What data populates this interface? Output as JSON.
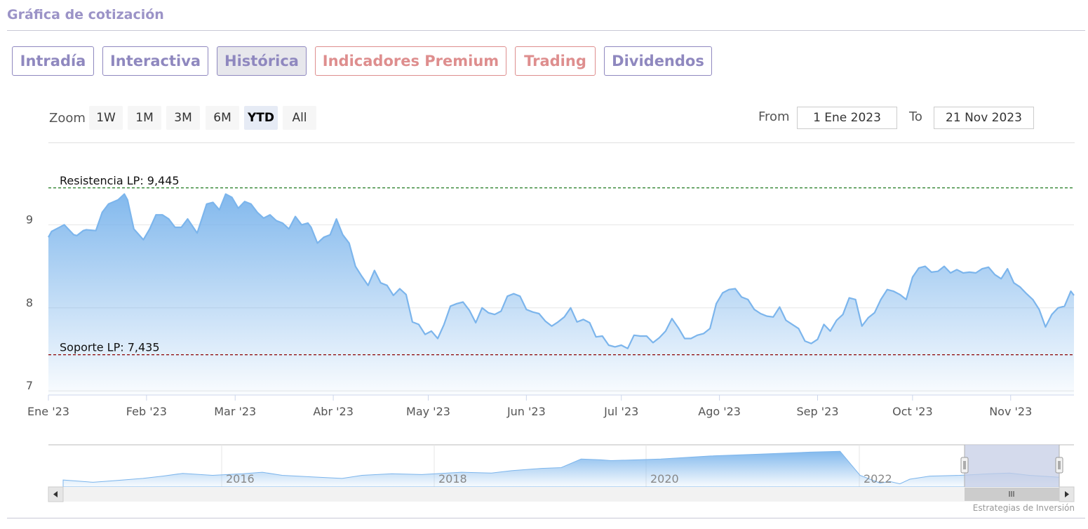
{
  "page": {
    "title": "Gráfica de cotización"
  },
  "tabs": [
    {
      "label": "Intradía",
      "active": false,
      "style": "default"
    },
    {
      "label": "Interactiva",
      "active": false,
      "style": "default"
    },
    {
      "label": "Histórica",
      "active": true,
      "style": "default"
    },
    {
      "label": "Indicadores Premium",
      "active": false,
      "style": "premium"
    },
    {
      "label": "Trading",
      "active": false,
      "style": "premium"
    },
    {
      "label": "Dividendos",
      "active": false,
      "style": "default"
    }
  ],
  "range_selector": {
    "zoom_label": "Zoom",
    "buttons": [
      {
        "label": "1W",
        "active": false
      },
      {
        "label": "1M",
        "active": false
      },
      {
        "label": "3M",
        "active": false
      },
      {
        "label": "6M",
        "active": false
      },
      {
        "label": "YTD",
        "active": true
      },
      {
        "label": "All",
        "active": false
      }
    ],
    "from_label": "From",
    "from_value": "1 Ene 2023",
    "to_label": "To",
    "to_value": "21 Nov 2023"
  },
  "credits": "Estrategias de Inversión",
  "colors": {
    "line": "#7cb5ec",
    "resistance": "#1e7a1e",
    "support": "#8b0000",
    "navigator_mask": "#c5cde6",
    "tab_default": "#8f88bf",
    "tab_premium": "#de8e8e"
  },
  "chart_data": [
    {
      "type": "area",
      "x_range": [
        "2023-01-01",
        "2023-11-21"
      ],
      "ylim": [
        6.95,
        9.95
      ],
      "y_ticks": [
        7,
        8,
        9
      ],
      "x_ticks": [
        {
          "date": "2023-01-01",
          "label": "Ene '23"
        },
        {
          "date": "2023-02-01",
          "label": "Feb '23"
        },
        {
          "date": "2023-03-01",
          "label": "Mar '23"
        },
        {
          "date": "2023-04-01",
          "label": "Abr '23"
        },
        {
          "date": "2023-05-01",
          "label": "May '23"
        },
        {
          "date": "2023-06-01",
          "label": "Jun '23"
        },
        {
          "date": "2023-07-01",
          "label": "Jul '23"
        },
        {
          "date": "2023-08-01",
          "label": "Ago '23"
        },
        {
          "date": "2023-09-01",
          "label": "Sep '23"
        },
        {
          "date": "2023-10-01",
          "label": "Oct '23"
        },
        {
          "date": "2023-11-01",
          "label": "Nov '23"
        }
      ],
      "plot_lines": [
        {
          "label": "Resistencia LP: 9,445",
          "value": 9.445,
          "style": "dashed",
          "color": "#1e7a1e"
        },
        {
          "label": "Soporte LP: 7,435",
          "value": 7.435,
          "style": "dashed",
          "color": "#8b0000"
        }
      ],
      "grid": true,
      "series": [
        {
          "points": [
            [
              "2023-01-01",
              8.85
            ],
            [
              "2023-01-02",
              8.92
            ],
            [
              "2023-01-05",
              8.98
            ],
            [
              "2023-01-06",
              9.0
            ],
            [
              "2023-01-09",
              8.88
            ],
            [
              "2023-01-10",
              8.87
            ],
            [
              "2023-01-12",
              8.93
            ],
            [
              "2023-01-13",
              8.94
            ],
            [
              "2023-01-16",
              8.93
            ],
            [
              "2023-01-18",
              9.15
            ],
            [
              "2023-01-20",
              9.25
            ],
            [
              "2023-01-23",
              9.3
            ],
            [
              "2023-01-25",
              9.37
            ],
            [
              "2023-01-26",
              9.3
            ],
            [
              "2023-01-28",
              8.95
            ],
            [
              "2023-01-31",
              8.82
            ],
            [
              "2023-02-02",
              8.95
            ],
            [
              "2023-02-04",
              9.12
            ],
            [
              "2023-02-06",
              9.12
            ],
            [
              "2023-02-08",
              9.07
            ],
            [
              "2023-02-10",
              8.97
            ],
            [
              "2023-02-12",
              8.97
            ],
            [
              "2023-02-14",
              9.07
            ],
            [
              "2023-02-17",
              8.9
            ],
            [
              "2023-02-20",
              9.25
            ],
            [
              "2023-02-22",
              9.27
            ],
            [
              "2023-02-24",
              9.18
            ],
            [
              "2023-02-26",
              9.37
            ],
            [
              "2023-02-28",
              9.33
            ],
            [
              "2023-03-02",
              9.2
            ],
            [
              "2023-03-04",
              9.28
            ],
            [
              "2023-03-06",
              9.25
            ],
            [
              "2023-03-08",
              9.15
            ],
            [
              "2023-03-10",
              9.08
            ],
            [
              "2023-03-12",
              9.12
            ],
            [
              "2023-03-14",
              9.05
            ],
            [
              "2023-03-16",
              9.02
            ],
            [
              "2023-03-18",
              8.95
            ],
            [
              "2023-03-20",
              9.1
            ],
            [
              "2023-03-22",
              9.0
            ],
            [
              "2023-03-24",
              9.02
            ],
            [
              "2023-03-25",
              8.97
            ],
            [
              "2023-03-27",
              8.78
            ],
            [
              "2023-03-29",
              8.85
            ],
            [
              "2023-03-31",
              8.88
            ],
            [
              "2023-04-02",
              9.07
            ],
            [
              "2023-04-04",
              8.88
            ],
            [
              "2023-04-06",
              8.78
            ],
            [
              "2023-04-08",
              8.5
            ],
            [
              "2023-04-10",
              8.38
            ],
            [
              "2023-04-12",
              8.27
            ],
            [
              "2023-04-14",
              8.45
            ],
            [
              "2023-04-16",
              8.3
            ],
            [
              "2023-04-18",
              8.27
            ],
            [
              "2023-04-20",
              8.15
            ],
            [
              "2023-04-22",
              8.23
            ],
            [
              "2023-04-24",
              8.16
            ],
            [
              "2023-04-26",
              7.83
            ],
            [
              "2023-04-28",
              7.8
            ],
            [
              "2023-04-30",
              7.68
            ],
            [
              "2023-05-02",
              7.72
            ],
            [
              "2023-05-04",
              7.63
            ],
            [
              "2023-05-06",
              7.8
            ],
            [
              "2023-05-08",
              8.02
            ],
            [
              "2023-05-10",
              8.05
            ],
            [
              "2023-05-12",
              8.07
            ],
            [
              "2023-05-14",
              7.97
            ],
            [
              "2023-05-16",
              7.82
            ],
            [
              "2023-05-18",
              8.0
            ],
            [
              "2023-05-20",
              7.94
            ],
            [
              "2023-05-22",
              7.92
            ],
            [
              "2023-05-24",
              7.96
            ],
            [
              "2023-05-26",
              8.14
            ],
            [
              "2023-05-28",
              8.17
            ],
            [
              "2023-05-30",
              8.14
            ],
            [
              "2023-06-01",
              7.98
            ],
            [
              "2023-06-03",
              7.95
            ],
            [
              "2023-06-05",
              7.93
            ],
            [
              "2023-06-07",
              7.84
            ],
            [
              "2023-06-09",
              7.78
            ],
            [
              "2023-06-11",
              7.83
            ],
            [
              "2023-06-13",
              7.89
            ],
            [
              "2023-06-15",
              8.0
            ],
            [
              "2023-06-17",
              7.83
            ],
            [
              "2023-06-19",
              7.86
            ],
            [
              "2023-06-21",
              7.82
            ],
            [
              "2023-06-23",
              7.65
            ],
            [
              "2023-06-25",
              7.66
            ],
            [
              "2023-06-27",
              7.55
            ],
            [
              "2023-06-29",
              7.53
            ],
            [
              "2023-07-01",
              7.55
            ],
            [
              "2023-07-03",
              7.51
            ],
            [
              "2023-07-05",
              7.67
            ],
            [
              "2023-07-07",
              7.66
            ],
            [
              "2023-07-09",
              7.66
            ],
            [
              "2023-07-11",
              7.58
            ],
            [
              "2023-07-13",
              7.64
            ],
            [
              "2023-07-15",
              7.72
            ],
            [
              "2023-07-17",
              7.87
            ],
            [
              "2023-07-19",
              7.76
            ],
            [
              "2023-07-21",
              7.63
            ],
            [
              "2023-07-23",
              7.63
            ],
            [
              "2023-07-25",
              7.67
            ],
            [
              "2023-07-27",
              7.69
            ],
            [
              "2023-07-29",
              7.75
            ],
            [
              "2023-07-31",
              8.05
            ],
            [
              "2023-08-02",
              8.18
            ],
            [
              "2023-08-04",
              8.22
            ],
            [
              "2023-08-06",
              8.23
            ],
            [
              "2023-08-08",
              8.13
            ],
            [
              "2023-08-10",
              8.1
            ],
            [
              "2023-08-12",
              7.98
            ],
            [
              "2023-08-14",
              7.93
            ],
            [
              "2023-08-16",
              7.9
            ],
            [
              "2023-08-18",
              7.89
            ],
            [
              "2023-08-20",
              8.01
            ],
            [
              "2023-08-22",
              7.85
            ],
            [
              "2023-08-24",
              7.8
            ],
            [
              "2023-08-26",
              7.75
            ],
            [
              "2023-08-28",
              7.6
            ],
            [
              "2023-08-30",
              7.57
            ],
            [
              "2023-09-01",
              7.62
            ],
            [
              "2023-09-03",
              7.8
            ],
            [
              "2023-09-05",
              7.72
            ],
            [
              "2023-09-07",
              7.85
            ],
            [
              "2023-09-09",
              7.92
            ],
            [
              "2023-09-11",
              8.12
            ],
            [
              "2023-09-13",
              8.1
            ],
            [
              "2023-09-15",
              7.78
            ],
            [
              "2023-09-17",
              7.88
            ],
            [
              "2023-09-19",
              7.94
            ],
            [
              "2023-09-21",
              8.1
            ],
            [
              "2023-09-23",
              8.22
            ],
            [
              "2023-09-25",
              8.2
            ],
            [
              "2023-09-27",
              8.16
            ],
            [
              "2023-09-29",
              8.1
            ],
            [
              "2023-10-01",
              8.37
            ],
            [
              "2023-10-03",
              8.48
            ],
            [
              "2023-10-05",
              8.5
            ],
            [
              "2023-10-07",
              8.43
            ],
            [
              "2023-10-09",
              8.44
            ],
            [
              "2023-10-11",
              8.5
            ],
            [
              "2023-10-13",
              8.42
            ],
            [
              "2023-10-15",
              8.46
            ],
            [
              "2023-10-17",
              8.42
            ],
            [
              "2023-10-19",
              8.43
            ],
            [
              "2023-10-21",
              8.42
            ],
            [
              "2023-10-23",
              8.47
            ],
            [
              "2023-10-25",
              8.49
            ],
            [
              "2023-10-27",
              8.4
            ],
            [
              "2023-10-29",
              8.35
            ],
            [
              "2023-10-31",
              8.47
            ],
            [
              "2023-11-02",
              8.3
            ],
            [
              "2023-11-04",
              8.25
            ],
            [
              "2023-11-06",
              8.17
            ],
            [
              "2023-11-08",
              8.1
            ],
            [
              "2023-11-10",
              7.98
            ],
            [
              "2023-11-12",
              7.77
            ],
            [
              "2023-11-14",
              7.92
            ],
            [
              "2023-11-16",
              8.0
            ],
            [
              "2023-11-18",
              8.02
            ],
            [
              "2023-11-20",
              8.2
            ],
            [
              "2023-11-21",
              8.15
            ]
          ]
        }
      ]
    },
    {
      "type": "area",
      "role": "navigator",
      "x_ticks": [
        "2016",
        "2018",
        "2020",
        "2022"
      ],
      "selection": [
        "2023-01-01",
        "2023-11-21"
      ]
    }
  ]
}
